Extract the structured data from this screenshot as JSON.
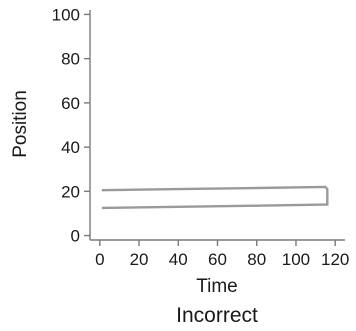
{
  "chart_data": {
    "type": "line",
    "title": "",
    "xlabel": "Time",
    "ylabel": "Position",
    "caption": "Incorrect",
    "xlim": [
      -5,
      125
    ],
    "ylim": [
      -2,
      102
    ],
    "xticks": [
      0,
      20,
      40,
      60,
      80,
      100,
      120
    ],
    "yticks": [
      0,
      20,
      40,
      60,
      80,
      100
    ],
    "grid": false,
    "legend": "none",
    "colors": {
      "line": "#9a9a9a",
      "axis": "#7a7a7a"
    },
    "series": [
      {
        "x": [
          1,
          40,
          80,
          115,
          116,
          116,
          115,
          80,
          40,
          1
        ],
        "y": [
          20.5,
          21,
          21.5,
          22,
          21,
          14,
          14,
          13.5,
          13,
          12.5
        ]
      }
    ]
  }
}
